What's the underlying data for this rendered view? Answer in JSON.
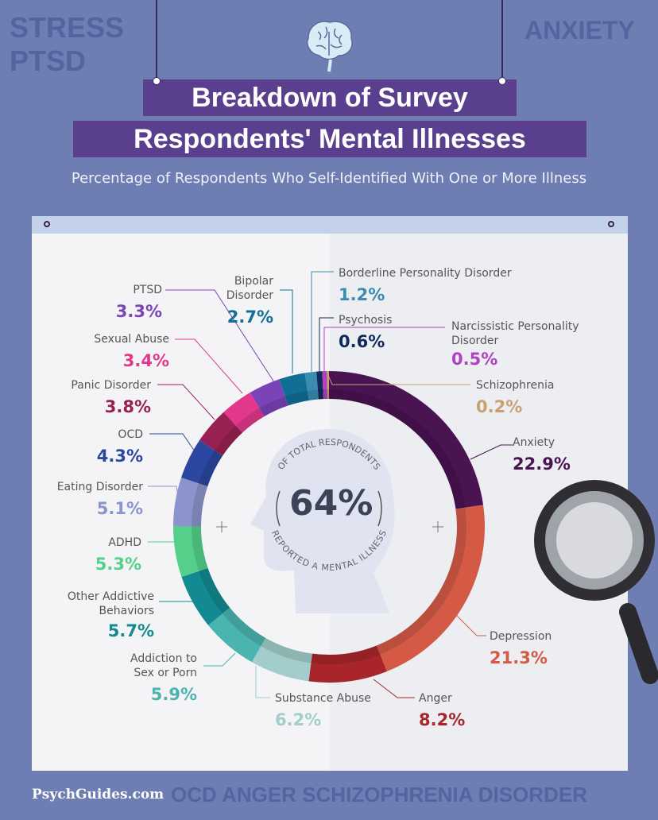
{
  "header": {
    "title_line1": "Breakdown of Survey",
    "title_line2": "Respondents' Mental Illnesses",
    "subtitle": "Percentage of Respondents Who Self-Identified With One or More Illness"
  },
  "center": {
    "value": "64%",
    "top_text": "OF TOTAL RESPONDENTS",
    "bottom_text": "REPORTED A MENTAL ILLNESS"
  },
  "background_words": [
    "STRESS",
    "OCD",
    "ANGER",
    "PTSD",
    "ANXIETY",
    "SCHIZOPHRENIA",
    "DISORDER"
  ],
  "footer": {
    "brand": "PsychGuides.com"
  },
  "chart_data": {
    "type": "pie",
    "variant": "donut",
    "start": "top, clockwise",
    "categories": [
      "Anxiety",
      "Depression",
      "Anger",
      "Substance Abuse",
      "Addiction to Sex or Porn",
      "Other Addictive Behaviors",
      "ADHD",
      "Eating Disorder",
      "OCD",
      "Panic Disorder",
      "Sexual Abuse",
      "PTSD",
      "Bipolar Disorder",
      "Borderline Personality Disorder",
      "Psychosis",
      "Narcissistic Personality Disorder",
      "Schizophrenia"
    ],
    "values": [
      22.9,
      21.3,
      8.2,
      6.2,
      5.9,
      5.7,
      5.3,
      5.1,
      4.3,
      3.8,
      3.4,
      3.3,
      2.7,
      1.2,
      0.6,
      0.5,
      0.2
    ],
    "labels": [
      "22.9%",
      "21.3%",
      "8.2%",
      "6.2%",
      "5.9%",
      "5.7%",
      "5.3%",
      "5.1%",
      "4.3%",
      "3.8%",
      "3.4%",
      "3.3%",
      "2.7%",
      "1.2%",
      "0.6%",
      "0.5%",
      "0.2%"
    ],
    "colors": [
      "#4a1352",
      "#d45a46",
      "#a8262b",
      "#a2cdca",
      "#4ab4b0",
      "#138a92",
      "#55d08a",
      "#8b94cc",
      "#2b479f",
      "#972152",
      "#e2388b",
      "#7a44b9",
      "#116f96",
      "#3a8cb0",
      "#112a5c",
      "#b042c2",
      "#c9a070"
    ]
  }
}
